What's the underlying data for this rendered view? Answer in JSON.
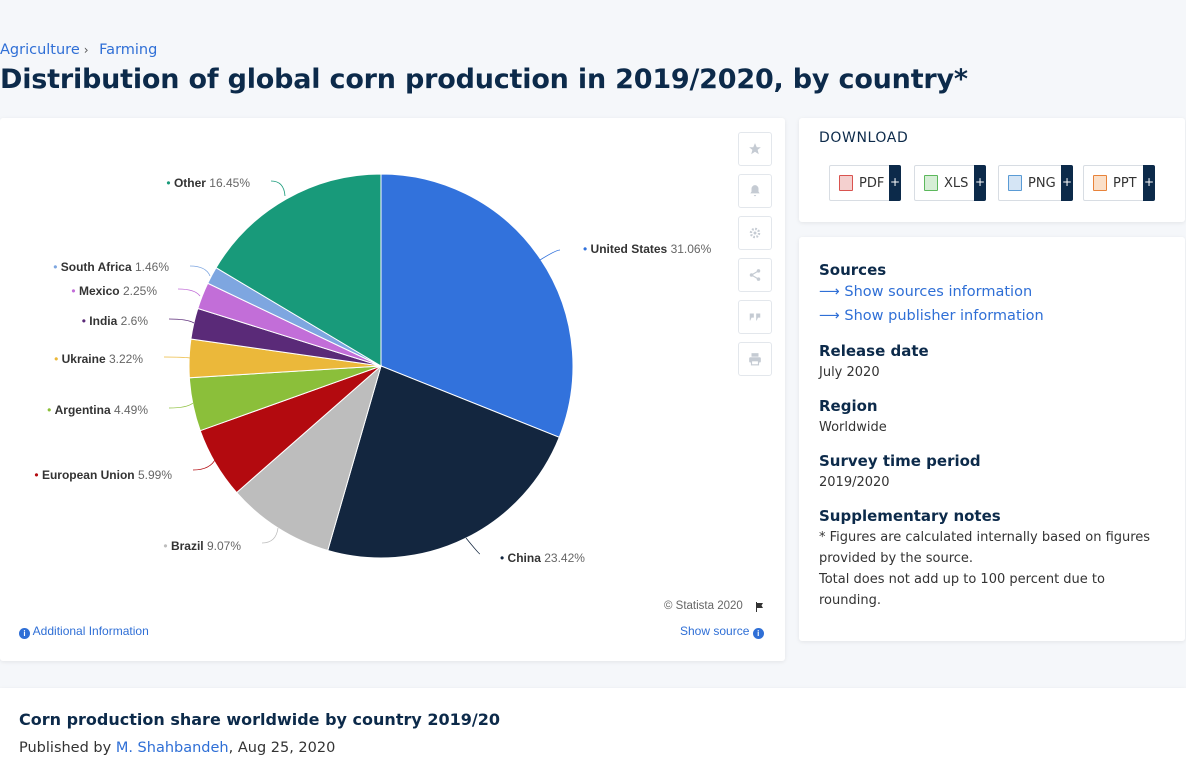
{
  "breadcrumb": {
    "items": [
      "Agriculture",
      "Farming"
    ],
    "separator": "›"
  },
  "page_title": "Distribution of global corn production in 2019/2020, by country*",
  "chart_data": {
    "type": "pie",
    "slices": [
      {
        "label": "United States",
        "value": 31.06,
        "display": "31.06%",
        "color": "#3272dc"
      },
      {
        "label": "China",
        "value": 23.42,
        "display": "23.42%",
        "color": "#13263f"
      },
      {
        "label": "Brazil",
        "value": 9.07,
        "display": "9.07%",
        "color": "#bdbdbd"
      },
      {
        "label": "European Union",
        "value": 5.99,
        "display": "5.99%",
        "color": "#b30a0f"
      },
      {
        "label": "Argentina",
        "value": 4.49,
        "display": "4.49%",
        "color": "#8bbf3a"
      },
      {
        "label": "Ukraine",
        "value": 3.22,
        "display": "3.22%",
        "color": "#ebb83a"
      },
      {
        "label": "India",
        "value": 2.6,
        "display": "2.6%",
        "color": "#5a2a78"
      },
      {
        "label": "Mexico",
        "value": 2.25,
        "display": "2.25%",
        "color": "#c26ed8"
      },
      {
        "label": "South Africa",
        "value": 1.46,
        "display": "1.46%",
        "color": "#7ea6e0"
      },
      {
        "label": "Other",
        "value": 16.45,
        "display": "16.45%",
        "color": "#189a7a"
      }
    ]
  },
  "tools": [
    "star-icon",
    "bell-icon",
    "gear-icon",
    "share-icon",
    "quote-icon",
    "print-icon"
  ],
  "copyright": "© Statista 2020",
  "additional_info": "Additional Information",
  "show_source": "Show source",
  "download": {
    "title": "DOWNLOAD",
    "buttons": [
      {
        "label": "PDF",
        "color": "#d9534f",
        "plus": "+"
      },
      {
        "label": "XLS",
        "color": "#5cb85c",
        "plus": "+"
      },
      {
        "label": "PNG",
        "color": "#5a9bd5",
        "plus": "+"
      },
      {
        "label": "PPT",
        "color": "#e8833a",
        "plus": "+"
      }
    ]
  },
  "meta": {
    "sources_head": "Sources",
    "show_sources": "Show sources information",
    "show_publisher": "Show publisher information",
    "release_head": "Release date",
    "release_val": "July 2020",
    "region_head": "Region",
    "region_val": "Worldwide",
    "survey_head": "Survey time period",
    "survey_val": "2019/2020",
    "supp_head": "Supplementary notes",
    "supp_note1": "* Figures are calculated internally based on figures provided by the source.",
    "supp_note2": "Total does not add up to 100 percent due to rounding."
  },
  "bottom": {
    "title": "Corn production share worldwide by country 2019/20",
    "published_prefix": "Published by ",
    "author": "M. Shahbandeh",
    "date_suffix": ", Aug 25, 2020"
  }
}
